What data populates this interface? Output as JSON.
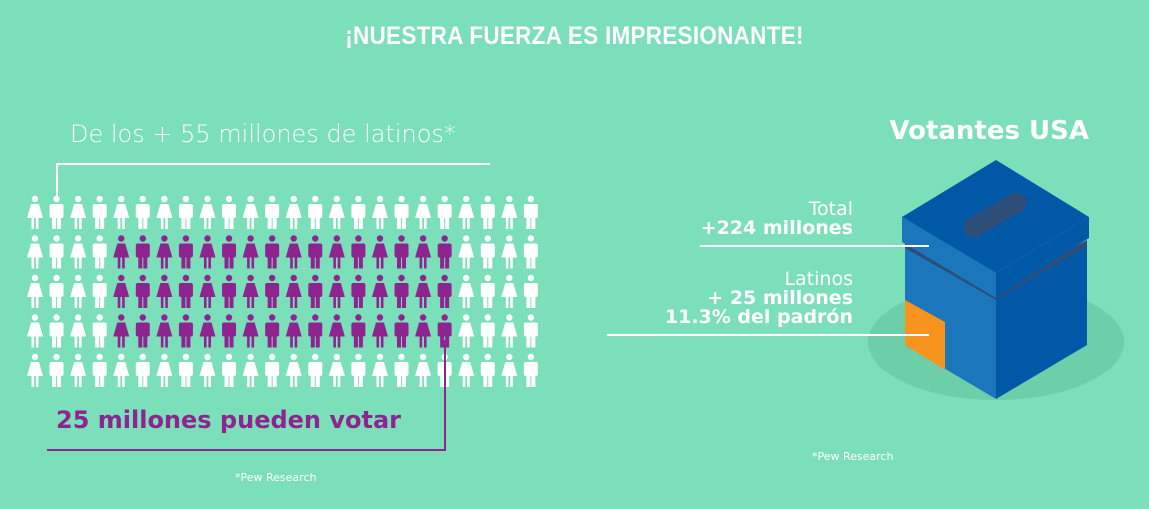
{
  "title": "¡NUESTRA FUERZA ES IMPRESIONANTE!",
  "left": {
    "subtitle": "De los + 55 millones de latinos*",
    "highlight": "25 millones pueden votar",
    "source": "*Pew Research",
    "grid": {
      "rows": 5,
      "cols": 24,
      "highlight_rows": [
        1,
        3
      ],
      "highlight_cols": [
        4,
        19
      ]
    }
  },
  "right": {
    "title": "Votantes USA",
    "total_label": "Total",
    "total_value": "+224 millones",
    "latinos_label": "Latinos",
    "latinos_value": "+ 25 millones",
    "latinos_share": "11.3% del padrón",
    "source": "*Pew Research"
  },
  "colors": {
    "background": "#7bdfba",
    "highlight": "#8e2490",
    "box": "#1b76bb",
    "box_dark": "#0158a6",
    "latinos": "#f7941d"
  }
}
